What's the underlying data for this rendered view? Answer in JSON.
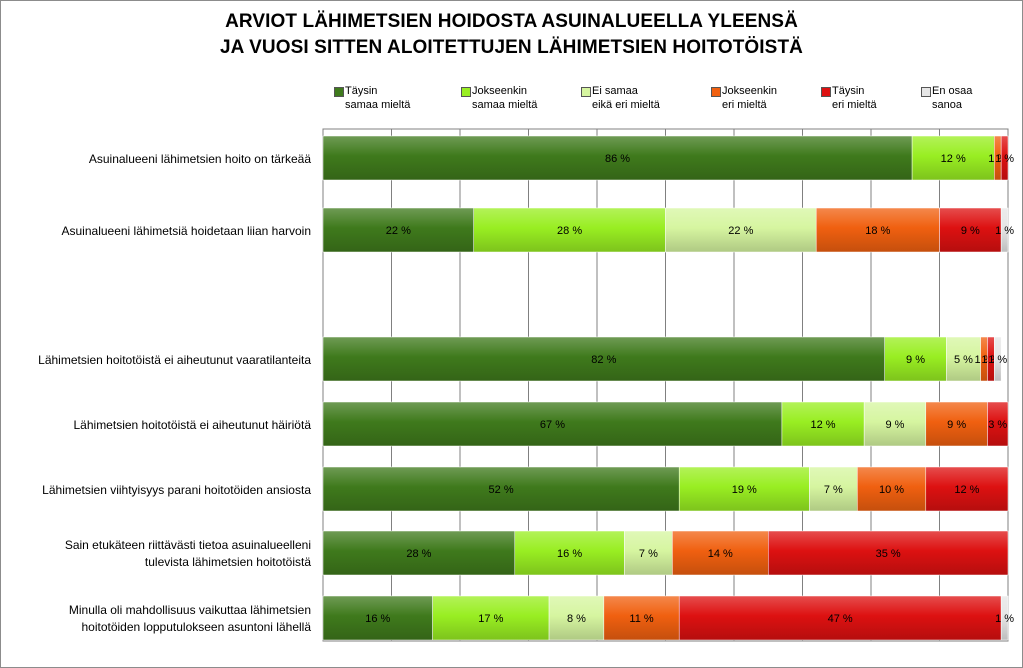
{
  "chart_data": {
    "type": "bar",
    "orientation": "horizontal",
    "stacked": true,
    "title": "ARVIOT LÄHIMETSIEN HOIDOSTA ASUINALUEELLA YLEENSÄ",
    "subtitle": "JA VUOSI SITTEN ALOITETTUJEN LÄHIMETSIEN HOITOTÖISTÄ",
    "xlim": [
      0,
      100
    ],
    "grid": true,
    "legend_position": "top",
    "series": [
      {
        "name_lines": [
          "Täysin",
          "samaa mieltä"
        ],
        "color": "#3f7a1c"
      },
      {
        "name_lines": [
          "Jokseenkin",
          "samaa mieltä"
        ],
        "color": "#99ee22"
      },
      {
        "name_lines": [
          "Ei samaa",
          "eikä eri mieltä"
        ],
        "color": "#d6f5a0"
      },
      {
        "name_lines": [
          "Jokseenkin",
          "eri mieltä"
        ],
        "color": "#f06010"
      },
      {
        "name_lines": [
          "Täysin",
          "eri mieltä"
        ],
        "color": "#dd1111"
      },
      {
        "name_lines": [
          "En osaa",
          "sanoa"
        ],
        "color": "#e6e6e6"
      }
    ],
    "rows": [
      {
        "label_lines": [
          "Asuinalueeni lähimetsien hoito on tärkeää"
        ],
        "values": [
          86,
          12,
          0,
          1,
          1,
          0
        ],
        "labels": [
          "86 %",
          "12 %",
          "",
          "1 %",
          "1 %",
          ""
        ]
      },
      {
        "label_lines": [
          "Asuinalueeni lähimetsiä hoidetaan liian harvoin"
        ],
        "values": [
          22,
          28,
          22,
          18,
          9,
          1
        ],
        "labels": [
          "22 %",
          "28 %",
          "22 %",
          "18 %",
          "9 %",
          "1 %"
        ]
      },
      {
        "label_lines": [],
        "values": [],
        "labels": [],
        "gap": true
      },
      {
        "label_lines": [
          "Lähimetsien hoitotöistä ei aiheutunut vaaratilanteita"
        ],
        "values": [
          82,
          9,
          5,
          1,
          1,
          1
        ],
        "labels": [
          "82 %",
          "9 %",
          "5 %",
          "1 %",
          "1 %",
          "1 %"
        ]
      },
      {
        "label_lines": [
          "Lähimetsien hoitotöistä ei aiheutunut häiriötä"
        ],
        "values": [
          67,
          12,
          9,
          9,
          3,
          0
        ],
        "labels": [
          "67 %",
          "12 %",
          "9 %",
          "9 %",
          "3 %",
          ""
        ]
      },
      {
        "label_lines": [
          "Lähimetsien viihtyisyys parani hoitotöiden ansiosta"
        ],
        "values": [
          52,
          19,
          7,
          10,
          12,
          0
        ],
        "labels": [
          "52 %",
          "19 %",
          "7 %",
          "10 %",
          "12 %",
          ""
        ]
      },
      {
        "label_lines": [
          "Sain etukäteen riittävästi tietoa asuinalueelleni",
          "tulevista lähimetsien hoitotöistä"
        ],
        "values": [
          28,
          16,
          7,
          14,
          35,
          0
        ],
        "labels": [
          "28 %",
          "16 %",
          "7 %",
          "14 %",
          "35 %",
          ""
        ]
      },
      {
        "label_lines": [
          "Minulla oli mahdollisuus vaikuttaa lähimetsien",
          "hoitotöiden lopputulokseen asuntoni lähellä"
        ],
        "values": [
          16,
          17,
          8,
          11,
          47,
          1
        ],
        "labels": [
          "16 %",
          "17 %",
          "8 %",
          "11 %",
          "47 %",
          "1 %"
        ]
      }
    ]
  }
}
